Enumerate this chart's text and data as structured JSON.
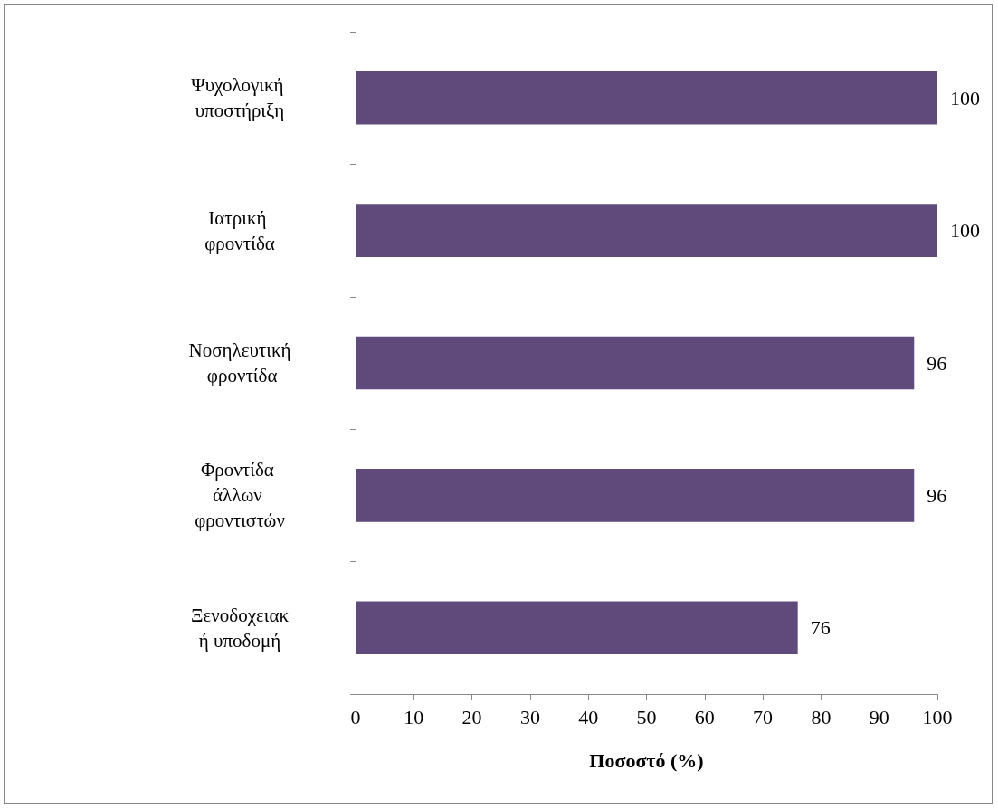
{
  "chart_data": {
    "type": "bar",
    "orientation": "horizontal",
    "xlabel": "Ποσοστό (%)",
    "categories": [
      "Ψυχολογική υποστήριξη",
      "Ιατρική φροντίδα",
      "Νοσηλευτική φροντίδα",
      "Φροντίδα άλλων φροντιστών",
      "Ξενοδοχειακή υποδομή"
    ],
    "values": [
      100,
      100,
      96,
      96,
      76
    ],
    "color": "#604a7b",
    "xlim": [
      0,
      100
    ],
    "xticks": [
      0,
      10,
      20,
      30,
      40,
      50,
      60,
      70,
      80,
      90,
      100
    ],
    "data_labels": true,
    "grid": false
  }
}
